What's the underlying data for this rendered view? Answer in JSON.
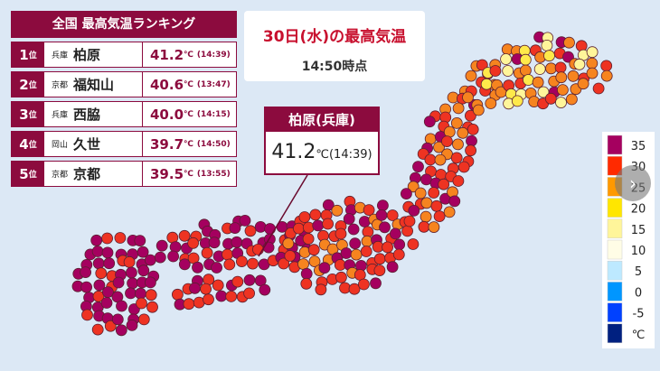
{
  "ranking": {
    "title": "全国 最高気温ランキング",
    "rows": [
      {
        "rank": "1",
        "rank_suffix": "位",
        "pref": "兵庫",
        "city": "柏原",
        "temp": "41.2",
        "unit": "℃",
        "time": "(14:39)"
      },
      {
        "rank": "2",
        "rank_suffix": "位",
        "pref": "京都",
        "city": "福知山",
        "temp": "40.6",
        "unit": "℃",
        "time": "(13:47)"
      },
      {
        "rank": "3",
        "rank_suffix": "位",
        "pref": "兵庫",
        "city": "西脇",
        "temp": "40.0",
        "unit": "℃",
        "time": "(14:15)"
      },
      {
        "rank": "4",
        "rank_suffix": "位",
        "pref": "岡山",
        "city": "久世",
        "temp": "39.7",
        "unit": "℃",
        "time": "(14:50)"
      },
      {
        "rank": "5",
        "rank_suffix": "位",
        "pref": "京都",
        "city": "京都",
        "temp": "39.5",
        "unit": "℃",
        "time": "(13:55)"
      }
    ]
  },
  "header": {
    "title": "30日(水)の最高気温",
    "time": "14:50時点"
  },
  "callout": {
    "place": "柏原(兵庫)",
    "temp": "41.2",
    "unit": "℃",
    "time": "(14:39)"
  },
  "legend": {
    "labels": [
      "35",
      "30",
      "25",
      "20",
      "15",
      "10",
      "5",
      "0",
      "-5",
      "℃"
    ],
    "colors": [
      "#a5005f",
      "#ff2a00",
      "#ff9900",
      "#ffe600",
      "#fff59a",
      "#fffde6",
      "#bde9ff",
      "#0096ff",
      "#0041ff",
      "#002080"
    ]
  }
}
